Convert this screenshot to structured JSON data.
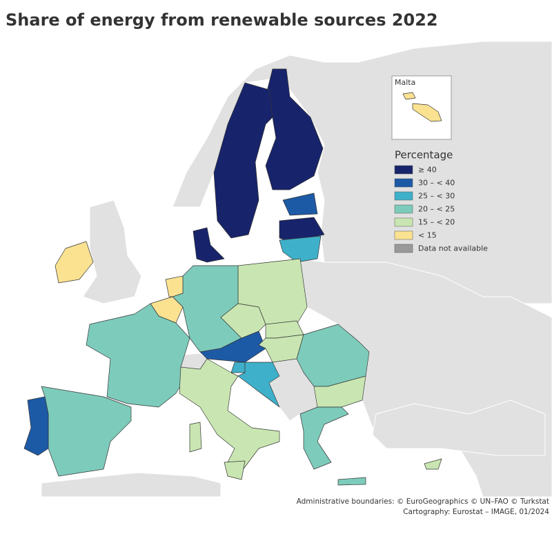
{
  "title": "Share of energy from renewable sources 2022",
  "inset": {
    "label": "Malta"
  },
  "legend": {
    "title": "Percentage",
    "items": [
      {
        "label": "≥ 40",
        "color": "#17246b"
      },
      {
        "label": "30 – < 40",
        "color": "#1d5aa6"
      },
      {
        "label": "25 – < 30",
        "color": "#3fb0c9"
      },
      {
        "label": "20 – < 25",
        "color": "#7dcbbb"
      },
      {
        "label": "15 – < 20",
        "color": "#c9e6b2"
      },
      {
        "label": "< 15",
        "color": "#fbe291"
      },
      {
        "label": "Data not available",
        "color": "#999999"
      }
    ]
  },
  "credits": [
    "Administrative boundaries: © EuroGeographics © UN–FAO © Turkstat",
    "Cartography: Eurostat – IMAGE, 01/2024"
  ]
}
